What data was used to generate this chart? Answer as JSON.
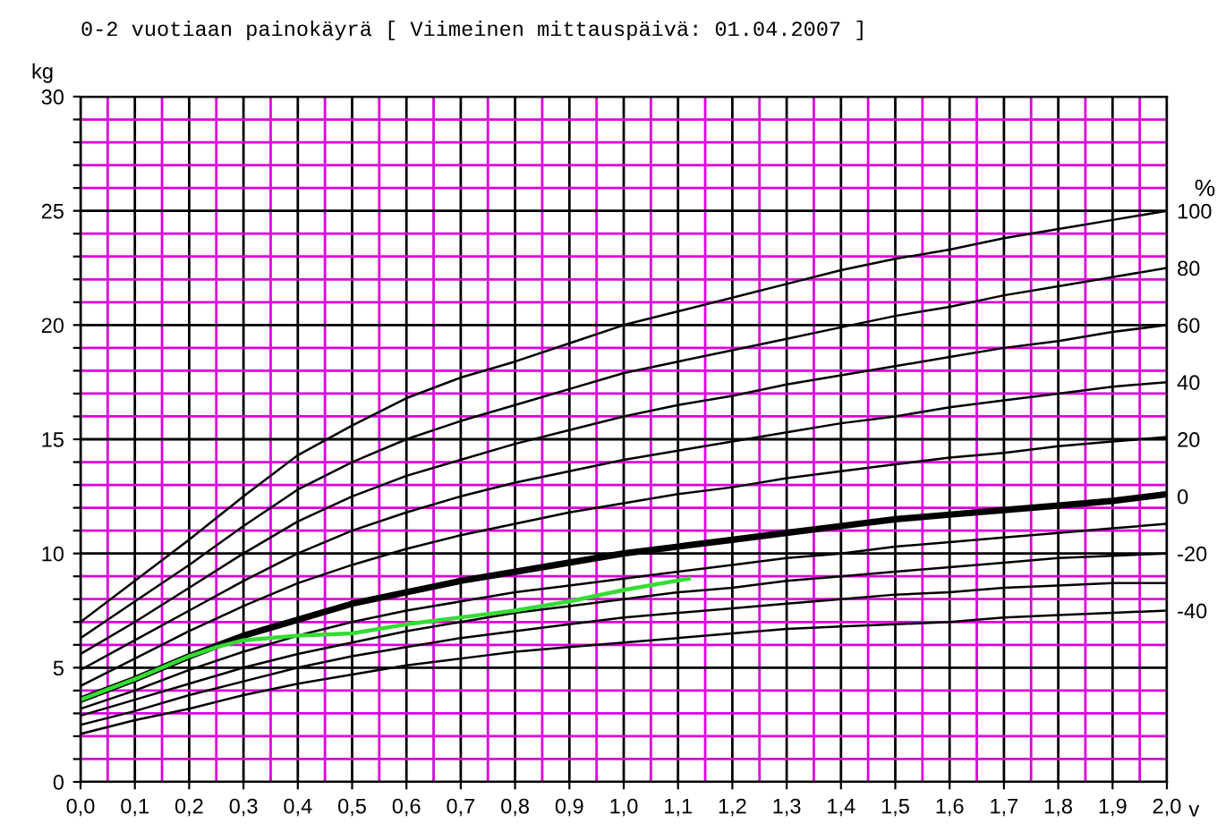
{
  "chart_data": {
    "type": "line",
    "title": "0-2 vuotiaan painokäyrä [ Viimeinen mittauspäivä: 01.04.2007 ]",
    "ylabel": "kg",
    "xlabel": "v",
    "y2label": "%",
    "x": [
      0.0,
      0.1,
      0.2,
      0.3,
      0.4,
      0.5,
      0.6,
      0.7,
      0.8,
      0.9,
      1.0,
      1.1,
      1.2,
      1.3,
      1.4,
      1.5,
      1.6,
      1.7,
      1.8,
      1.9,
      2.0
    ],
    "series": [
      {
        "color": "#000000",
        "values": [
          7.0,
          8.8,
          10.6,
          12.5,
          14.3,
          15.6,
          16.8,
          17.7,
          18.4,
          19.2,
          20.0,
          20.6,
          21.2,
          21.8,
          22.4,
          22.9,
          23.3,
          23.8,
          24.2,
          24.6,
          25.0
        ]
      },
      {
        "color": "#000000",
        "values": [
          6.3,
          7.9,
          9.5,
          11.2,
          12.8,
          14.0,
          15.0,
          15.8,
          16.5,
          17.2,
          17.9,
          18.4,
          18.9,
          19.4,
          19.9,
          20.4,
          20.8,
          21.3,
          21.7,
          22.1,
          22.5
        ]
      },
      {
        "color": "#000000",
        "values": [
          5.6,
          7.0,
          8.5,
          10.0,
          11.4,
          12.5,
          13.4,
          14.1,
          14.8,
          15.4,
          16.0,
          16.5,
          16.9,
          17.4,
          17.8,
          18.2,
          18.6,
          19.0,
          19.3,
          19.7,
          20.0
        ]
      },
      {
        "color": "#000000",
        "values": [
          4.9,
          6.2,
          7.5,
          8.8,
          10.0,
          11.0,
          11.8,
          12.5,
          13.1,
          13.6,
          14.1,
          14.5,
          14.9,
          15.3,
          15.7,
          16.0,
          16.4,
          16.7,
          17.0,
          17.3,
          17.5
        ]
      },
      {
        "color": "#000000",
        "values": [
          4.2,
          5.4,
          6.6,
          7.7,
          8.7,
          9.5,
          10.2,
          10.8,
          11.3,
          11.8,
          12.2,
          12.6,
          12.9,
          13.3,
          13.6,
          13.9,
          14.2,
          14.4,
          14.7,
          14.9,
          15.1
        ]
      },
      {
        "color": "#000000",
        "values": [
          3.6,
          4.5,
          5.5,
          6.4,
          7.1,
          7.8,
          8.3,
          8.8,
          9.2,
          9.6,
          10.0,
          10.3,
          10.6,
          10.9,
          11.2,
          11.5,
          11.7,
          11.9,
          12.1,
          12.3,
          12.6
        ]
      },
      {
        "color": "#000000",
        "values": [
          3.2,
          4.0,
          4.9,
          5.7,
          6.4,
          7.0,
          7.5,
          7.9,
          8.3,
          8.6,
          8.9,
          9.2,
          9.5,
          9.8,
          10.0,
          10.3,
          10.5,
          10.7,
          10.9,
          11.1,
          11.3
        ]
      },
      {
        "color": "#000000",
        "values": [
          2.9,
          3.6,
          4.3,
          5.0,
          5.6,
          6.1,
          6.6,
          7.0,
          7.4,
          7.7,
          8.0,
          8.3,
          8.5,
          8.8,
          9.0,
          9.2,
          9.4,
          9.6,
          9.8,
          9.9,
          10.0
        ]
      },
      {
        "color": "#000000",
        "values": [
          2.5,
          3.1,
          3.8,
          4.4,
          5.0,
          5.5,
          5.9,
          6.3,
          6.6,
          6.9,
          7.2,
          7.4,
          7.6,
          7.8,
          8.0,
          8.2,
          8.3,
          8.5,
          8.6,
          8.7,
          8.7
        ]
      },
      {
        "color": "#000000",
        "values": [
          2.1,
          2.7,
          3.2,
          3.8,
          4.3,
          4.7,
          5.1,
          5.4,
          5.7,
          5.9,
          6.1,
          6.3,
          6.5,
          6.7,
          6.8,
          6.9,
          7.0,
          7.2,
          7.3,
          7.4,
          7.5
        ]
      },
      {
        "color": "#33dd33",
        "x": [
          0.0,
          0.1,
          0.2,
          0.25,
          0.3,
          0.4,
          0.5,
          0.6,
          0.7,
          0.8,
          0.9,
          1.0,
          1.12
        ],
        "values": [
          3.6,
          4.5,
          5.5,
          5.9,
          6.2,
          6.4,
          6.5,
          6.9,
          7.2,
          7.5,
          7.9,
          8.4,
          8.9
        ]
      }
    ],
    "xlim": [
      0,
      2.0
    ],
    "xticks": [
      {
        "value": 0.0,
        "label": "0,0"
      },
      {
        "value": 0.05,
        "label": null
      },
      {
        "value": 0.1,
        "label": "0,1"
      },
      {
        "value": 0.15,
        "label": null
      },
      {
        "value": 0.2,
        "label": "0,2"
      },
      {
        "value": 0.25,
        "label": null
      },
      {
        "value": 0.3,
        "label": "0,3"
      },
      {
        "value": 0.35,
        "label": null
      },
      {
        "value": 0.4,
        "label": "0,4"
      },
      {
        "value": 0.45,
        "label": null
      },
      {
        "value": 0.5,
        "label": "0,5"
      },
      {
        "value": 0.55,
        "label": null
      },
      {
        "value": 0.6,
        "label": "0,6"
      },
      {
        "value": 0.65,
        "label": null
      },
      {
        "value": 0.7,
        "label": "0,7"
      },
      {
        "value": 0.75,
        "label": null
      },
      {
        "value": 0.8,
        "label": "0,8"
      },
      {
        "value": 0.85,
        "label": null
      },
      {
        "value": 0.9,
        "label": "0,9"
      },
      {
        "value": 0.95,
        "label": null
      },
      {
        "value": 1.0,
        "label": "1,0"
      },
      {
        "value": 1.05,
        "label": null
      },
      {
        "value": 1.1,
        "label": "1,1"
      },
      {
        "value": 1.15,
        "label": null
      },
      {
        "value": 1.2,
        "label": "1,2"
      },
      {
        "value": 1.25,
        "label": null
      },
      {
        "value": 1.3,
        "label": "1,3"
      },
      {
        "value": 1.35,
        "label": null
      },
      {
        "value": 1.4,
        "label": "1,4"
      },
      {
        "value": 1.45,
        "label": null
      },
      {
        "value": 1.5,
        "label": "1,5"
      },
      {
        "value": 1.55,
        "label": null
      },
      {
        "value": 1.6,
        "label": "1,6"
      },
      {
        "value": 1.65,
        "label": null
      },
      {
        "value": 1.7,
        "label": "1,7"
      },
      {
        "value": 1.75,
        "label": null
      },
      {
        "value": 1.8,
        "label": "1,8"
      },
      {
        "value": 1.85,
        "label": null
      },
      {
        "value": 1.9,
        "label": "1,9"
      },
      {
        "value": 1.95,
        "label": null
      },
      {
        "value": 2.0,
        "label": "2,0"
      }
    ],
    "ylim": [
      0,
      30
    ],
    "yticks": [
      0,
      {
        "value": 1,
        "label": null
      },
      {
        "value": 2,
        "label": null
      },
      {
        "value": 3,
        "label": null
      },
      {
        "value": 4,
        "label": null
      },
      5,
      {
        "value": 6,
        "label": null
      },
      {
        "value": 7,
        "label": null
      },
      {
        "value": 8,
        "label": null
      },
      {
        "value": 9,
        "label": null
      },
      10,
      {
        "value": 11,
        "label": null
      },
      {
        "value": 12,
        "label": null
      },
      {
        "value": 13,
        "label": null
      },
      {
        "value": 14,
        "label": null
      },
      15,
      {
        "value": 16,
        "label": null
      },
      {
        "value": 17,
        "label": null
      },
      {
        "value": 18,
        "label": null
      },
      {
        "value": 19,
        "label": null
      },
      20,
      {
        "value": 21,
        "label": null
      },
      {
        "value": 22,
        "label": null
      },
      {
        "value": 23,
        "label": null
      },
      {
        "value": 24,
        "label": null
      },
      25,
      {
        "value": 26,
        "label": null
      },
      {
        "value": 27,
        "label": null
      },
      {
        "value": 28,
        "label": null
      },
      {
        "value": 29,
        "label": null
      },
      30
    ],
    "y2lim": [
      -100,
      140
    ],
    "y2ticks": [
      100,
      80,
      60,
      40,
      20,
      0,
      -20,
      -40
    ],
    "grid": true,
    "legend": false,
    "marker": "none",
    "line_style": "solid"
  }
}
